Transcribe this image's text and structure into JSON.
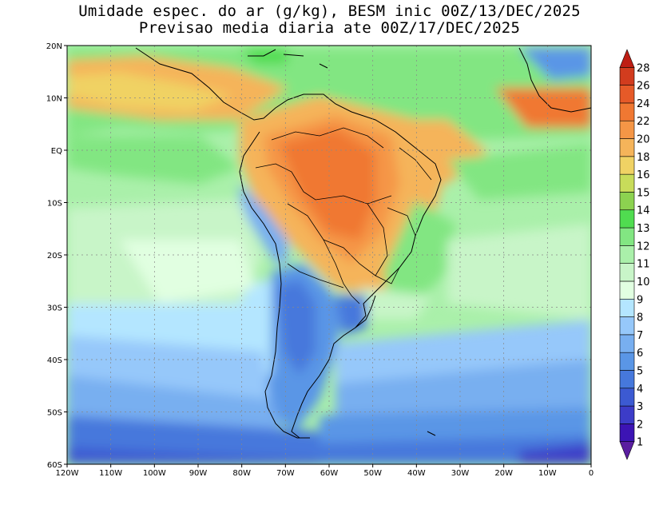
{
  "title_line1": "Umidade espec. do ar (g/kg), BESM inic 00Z/13/DEC/2025",
  "title_line2": "Previsao media diaria ate 00Z/17/DEC/2025",
  "lat_labels": [
    "20N",
    "10N",
    "EQ",
    "10S",
    "20S",
    "30S",
    "40S",
    "50S",
    "60S"
  ],
  "lat_values": [
    20,
    10,
    0,
    -10,
    -20,
    -30,
    -40,
    -50,
    -60
  ],
  "lon_labels": [
    "120W",
    "110W",
    "100W",
    "90W",
    "80W",
    "70W",
    "60W",
    "50W",
    "40W",
    "30W",
    "20W",
    "10W",
    "0"
  ],
  "lon_values": [
    -120,
    -110,
    -100,
    -90,
    -80,
    -70,
    -60,
    -50,
    -40,
    -30,
    -20,
    -10,
    0
  ],
  "extent": {
    "lon_min": -120,
    "lon_max": 0,
    "lat_min": -60,
    "lat_max": 20
  },
  "colorbar": {
    "levels": [
      "1",
      "2",
      "3",
      "4",
      "5",
      "6",
      "7",
      "8",
      "9",
      "10",
      "11",
      "12",
      "13",
      "14",
      "15",
      "16",
      "18",
      "20",
      "22",
      "24",
      "26",
      "28"
    ],
    "colors": [
      "#5a1ea0",
      "#3c14b4",
      "#3c3cc8",
      "#3c5ad2",
      "#4678dc",
      "#5a96e6",
      "#78aff0",
      "#96c8fa",
      "#b4e6ff",
      "#e1ffe1",
      "#c8f5c8",
      "#aaf0aa",
      "#82e682",
      "#50dc50",
      "#8cd250",
      "#c8dc5a",
      "#f0d264",
      "#f5b45a",
      "#f59646",
      "#f07832",
      "#e65a28",
      "#d23c1e",
      "#be1e14"
    ]
  }
}
